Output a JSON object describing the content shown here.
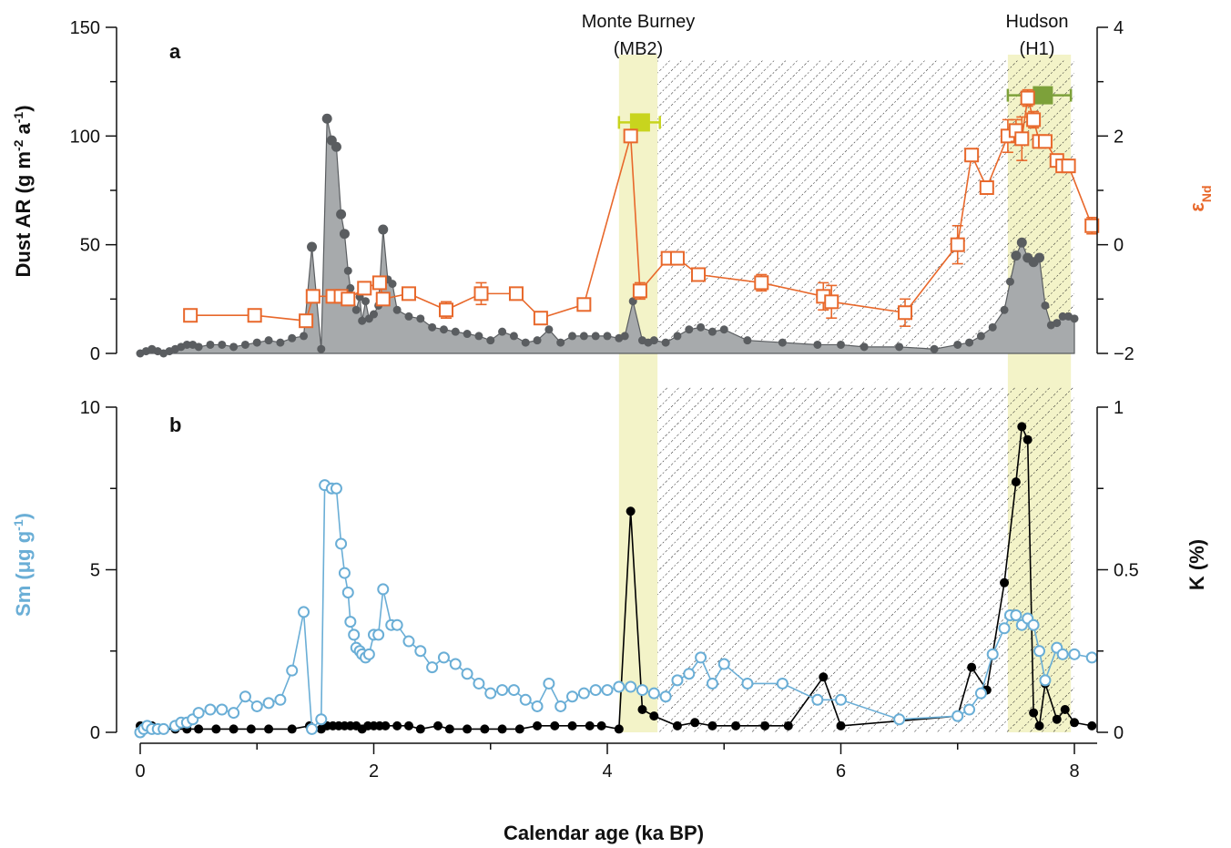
{
  "chart_data": [
    {
      "panel": "a",
      "type": "area",
      "xlabel": "Calendar age (ka BP)",
      "ylabel": "Dust AR (g m",
      "ylabel_sup1": "-2",
      "ylabel_mid": " a",
      "ylabel_sup2": "-1",
      "ylabel_end": ")",
      "y2label": "ε",
      "y2label_sub": "Nd",
      "xlim": [
        0,
        8.2
      ],
      "ylim": [
        0,
        150
      ],
      "y2lim": [
        -2,
        4
      ],
      "x_ticks": [
        "0",
        "2",
        "4",
        "6",
        "8"
      ],
      "y_ticks": [
        "0",
        "50",
        "100",
        "150"
      ],
      "y2_ticks": [
        "−2",
        "0",
        "2",
        "4"
      ],
      "annotations": [
        {
          "line1": "Monte Burney",
          "line2": "(MB2)"
        },
        {
          "line1": "Hudson",
          "line2": "(H1)"
        }
      ],
      "shaded_bands": [
        [
          4.1,
          4.43
        ],
        [
          7.43,
          7.97
        ]
      ],
      "hatched_range": [
        4.43,
        8.0
      ],
      "tephra_markers": [
        {
          "x": 4.28,
          "y2": 2.25,
          "xerr": [
            4.1,
            4.45
          ],
          "color": "#c8d41e"
        },
        {
          "x": 7.73,
          "y2": 2.75,
          "xerr": [
            7.43,
            7.97
          ],
          "color": "#7da13a"
        }
      ],
      "series": [
        {
          "name": "Dust AR",
          "color": "#5a5d60",
          "fill": "#a7aaac",
          "x": [
            0.0,
            0.05,
            0.1,
            0.15,
            0.2,
            0.25,
            0.3,
            0.35,
            0.4,
            0.45,
            0.5,
            0.6,
            0.7,
            0.8,
            0.9,
            1.0,
            1.1,
            1.2,
            1.3,
            1.4,
            1.47,
            1.55,
            1.6,
            1.64,
            1.68,
            1.72,
            1.75,
            1.78,
            1.8,
            1.85,
            1.88,
            1.9,
            1.93,
            1.96,
            2.0,
            2.04,
            2.08,
            2.12,
            2.16,
            2.2,
            2.3,
            2.4,
            2.5,
            2.6,
            2.7,
            2.8,
            2.9,
            3.0,
            3.1,
            3.2,
            3.3,
            3.4,
            3.5,
            3.6,
            3.7,
            3.8,
            3.9,
            4.0,
            4.1,
            4.15,
            4.22,
            4.3,
            4.35,
            4.4,
            4.5,
            4.6,
            4.7,
            4.8,
            4.9,
            5.0,
            5.2,
            5.5,
            5.8,
            6.0,
            6.2,
            6.5,
            6.8,
            7.0,
            7.1,
            7.2,
            7.3,
            7.4,
            7.45,
            7.5,
            7.55,
            7.6,
            7.65,
            7.7,
            7.75,
            7.8,
            7.85,
            7.9,
            7.95,
            8.0
          ],
          "values": [
            0,
            1,
            2,
            1,
            0,
            1,
            2,
            3,
            4,
            4,
            3,
            4,
            4,
            3,
            4,
            5,
            6,
            5,
            7,
            8,
            49,
            2,
            108,
            98,
            95,
            64,
            55,
            38,
            30,
            20,
            26,
            15,
            24,
            16,
            18,
            22,
            57,
            34,
            32,
            20,
            17,
            16,
            12,
            11,
            10,
            9,
            8,
            6,
            10,
            8,
            5,
            6,
            11,
            5,
            8,
            8,
            8,
            8,
            7,
            8,
            24,
            6,
            5,
            6,
            5,
            8,
            11,
            12,
            10,
            11,
            6,
            5,
            4,
            4,
            3,
            3,
            2,
            4,
            5,
            8,
            12,
            20,
            33,
            45,
            51,
            44,
            42,
            44,
            22,
            13,
            14,
            17,
            17,
            16
          ]
        },
        {
          "name": "εNd",
          "axis": "right",
          "color": "#e8682b",
          "x": [
            0.43,
            0.98,
            1.42,
            1.48,
            1.65,
            1.72,
            1.78,
            1.92,
            2.05,
            2.08,
            2.3,
            2.62,
            2.92,
            3.22,
            3.43,
            3.8,
            4.2,
            4.28,
            4.52,
            4.6,
            4.78,
            5.32,
            5.85,
            5.92,
            6.55,
            7.0,
            7.12,
            7.25,
            7.43,
            7.5,
            7.55,
            7.6,
            7.65,
            7.7,
            7.75,
            7.85,
            7.9,
            7.95,
            8.15
          ],
          "values": [
            -1.3,
            -1.3,
            -1.4,
            -0.95,
            -0.95,
            -0.95,
            -1.0,
            -0.8,
            -0.7,
            -1.0,
            -0.9,
            -1.2,
            -0.9,
            -0.9,
            -1.35,
            -1.1,
            2.0,
            -0.85,
            -0.25,
            -0.25,
            -0.55,
            -0.7,
            -0.95,
            -1.05,
            -1.25,
            0.0,
            1.65,
            1.05,
            2.0,
            2.1,
            1.95,
            2.7,
            2.3,
            1.9,
            1.9,
            1.55,
            1.45,
            1.45,
            0.35
          ],
          "yerr": [
            0.05,
            0.05,
            0.05,
            0.05,
            0.05,
            0.05,
            0.05,
            0.05,
            0.08,
            0.05,
            0.1,
            0.15,
            0.2,
            0.1,
            0.05,
            0.05,
            0.05,
            0.15,
            0.1,
            0.05,
            0.05,
            0.15,
            0.25,
            0.3,
            0.25,
            0.35,
            0.1,
            0.05,
            0.3,
            0.2,
            0.4,
            0.15,
            0.15,
            0.05,
            0.1,
            0.1,
            0.1,
            0.1,
            0.15
          ]
        }
      ]
    },
    {
      "panel": "b",
      "type": "line",
      "xlabel": "Calendar age (ka BP)",
      "ylabel": "Sm (μg g",
      "ylabel_sup": "-1",
      "ylabel_end": ")",
      "y2label": "K (%)",
      "xlim": [
        0,
        8.2
      ],
      "ylim": [
        0,
        10
      ],
      "y2lim": [
        0,
        1
      ],
      "y_ticks": [
        "0",
        "5",
        "10"
      ],
      "y2_ticks": [
        "0",
        "0.5",
        "1"
      ],
      "series": [
        {
          "name": "Sm",
          "color": "#6aaed6",
          "x": [
            0.0,
            0.03,
            0.06,
            0.1,
            0.15,
            0.2,
            0.3,
            0.35,
            0.4,
            0.45,
            0.5,
            0.6,
            0.7,
            0.8,
            0.9,
            1.0,
            1.1,
            1.2,
            1.3,
            1.4,
            1.47,
            1.55,
            1.58,
            1.64,
            1.68,
            1.72,
            1.75,
            1.78,
            1.8,
            1.83,
            1.85,
            1.88,
            1.9,
            1.93,
            1.96,
            2.0,
            2.04,
            2.08,
            2.15,
            2.2,
            2.3,
            2.4,
            2.5,
            2.6,
            2.7,
            2.8,
            2.9,
            3.0,
            3.1,
            3.2,
            3.3,
            3.4,
            3.5,
            3.6,
            3.7,
            3.8,
            3.9,
            4.0,
            4.1,
            4.2,
            4.3,
            4.4,
            4.5,
            4.6,
            4.7,
            4.8,
            4.9,
            5.0,
            5.2,
            5.5,
            5.8,
            6.0,
            6.5,
            7.0,
            7.1,
            7.2,
            7.3,
            7.4,
            7.45,
            7.5,
            7.55,
            7.6,
            7.65,
            7.7,
            7.75,
            7.85,
            7.9,
            8.0,
            8.15
          ],
          "values": [
            0.0,
            0.1,
            0.2,
            0.1,
            0.1,
            0.1,
            0.2,
            0.3,
            0.3,
            0.4,
            0.6,
            0.7,
            0.7,
            0.6,
            1.1,
            0.8,
            0.9,
            1.0,
            1.9,
            3.7,
            0.1,
            0.4,
            7.6,
            7.5,
            7.5,
            5.8,
            4.9,
            4.3,
            3.4,
            3.0,
            2.6,
            2.5,
            2.4,
            2.3,
            2.4,
            3.0,
            3.0,
            4.4,
            3.3,
            3.3,
            2.8,
            2.5,
            2.0,
            2.3,
            2.1,
            1.8,
            1.5,
            1.2,
            1.3,
            1.3,
            1.0,
            0.8,
            1.5,
            0.8,
            1.1,
            1.2,
            1.3,
            1.3,
            1.4,
            1.4,
            1.3,
            1.2,
            1.1,
            1.6,
            1.8,
            2.3,
            1.5,
            2.1,
            1.5,
            1.5,
            1.0,
            1.0,
            0.4,
            0.5,
            0.7,
            1.2,
            2.4,
            3.2,
            3.6,
            3.6,
            3.3,
            3.5,
            3.3,
            2.5,
            1.6,
            2.6,
            2.4,
            2.4,
            2.3
          ]
        },
        {
          "name": "K",
          "axis": "right",
          "color": "#000000",
          "x": [
            0.0,
            0.05,
            0.1,
            0.15,
            0.2,
            0.3,
            0.4,
            0.5,
            0.65,
            0.8,
            0.95,
            1.1,
            1.3,
            1.45,
            1.55,
            1.6,
            1.65,
            1.7,
            1.75,
            1.8,
            1.85,
            1.9,
            1.95,
            2.0,
            2.05,
            2.1,
            2.2,
            2.3,
            2.4,
            2.55,
            2.65,
            2.8,
            2.95,
            3.1,
            3.25,
            3.4,
            3.55,
            3.7,
            3.85,
            3.95,
            4.1,
            4.2,
            4.3,
            4.4,
            4.6,
            4.75,
            4.9,
            5.1,
            5.35,
            5.55,
            5.85,
            6.0,
            7.0,
            7.12,
            7.25,
            7.4,
            7.5,
            7.55,
            7.6,
            7.65,
            7.7,
            7.75,
            7.85,
            7.92,
            8.0,
            8.15
          ],
          "values": [
            0.02,
            0.02,
            0.02,
            0.01,
            0.01,
            0.01,
            0.01,
            0.01,
            0.01,
            0.01,
            0.01,
            0.01,
            0.01,
            0.02,
            0.01,
            0.02,
            0.02,
            0.02,
            0.02,
            0.02,
            0.02,
            0.01,
            0.02,
            0.02,
            0.02,
            0.02,
            0.02,
            0.02,
            0.01,
            0.02,
            0.01,
            0.01,
            0.01,
            0.01,
            0.01,
            0.02,
            0.02,
            0.02,
            0.02,
            0.02,
            0.01,
            0.68,
            0.07,
            0.05,
            0.02,
            0.03,
            0.02,
            0.02,
            0.02,
            0.02,
            0.17,
            0.02,
            0.05,
            0.2,
            0.13,
            0.46,
            0.77,
            0.94,
            0.9,
            0.06,
            0.02,
            0.15,
            0.04,
            0.07,
            0.03,
            0.02
          ]
        }
      ]
    }
  ]
}
